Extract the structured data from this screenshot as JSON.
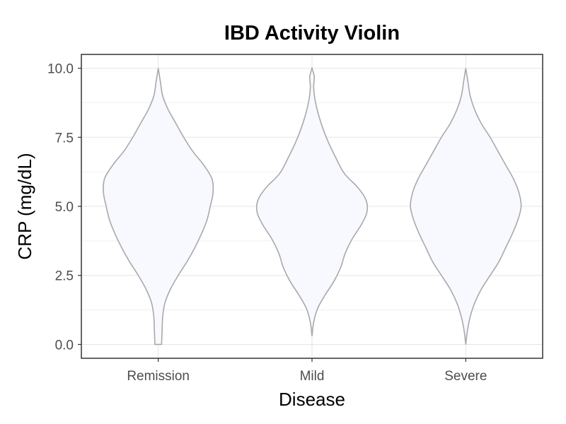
{
  "chart_data": {
    "type": "violin",
    "title": "IBD Activity Violin",
    "xlabel": "Disease",
    "ylabel": "CRP (mg/dL)",
    "categories": [
      "Remission",
      "Mild",
      "Severe"
    ],
    "y_ticks": [
      0.0,
      2.5,
      5.0,
      7.5,
      10.0
    ],
    "y_tick_labels": [
      "0.0",
      "2.5",
      "5.0",
      "7.5",
      "10.0"
    ],
    "ylim": [
      -0.5,
      10.5
    ],
    "grid": true,
    "legend": "none",
    "colors": {
      "fill": "#f8f9fe",
      "outline": "#a9a9a9",
      "grid": "#e5e5e5",
      "panel_border": "#333333"
    },
    "violins": [
      {
        "name": "Remission",
        "range": [
          0.0,
          10.0
        ],
        "profile": [
          [
            0.0,
            0.06
          ],
          [
            0.5,
            0.07
          ],
          [
            1.0,
            0.08
          ],
          [
            1.5,
            0.12
          ],
          [
            2.0,
            0.22
          ],
          [
            2.5,
            0.36
          ],
          [
            3.0,
            0.52
          ],
          [
            3.5,
            0.66
          ],
          [
            4.0,
            0.78
          ],
          [
            4.5,
            0.88
          ],
          [
            5.0,
            0.94
          ],
          [
            5.5,
            0.99
          ],
          [
            6.0,
            0.97
          ],
          [
            6.5,
            0.82
          ],
          [
            7.0,
            0.62
          ],
          [
            7.5,
            0.46
          ],
          [
            8.0,
            0.32
          ],
          [
            8.5,
            0.18
          ],
          [
            9.0,
            0.08
          ],
          [
            9.5,
            0.04
          ],
          [
            10.0,
            0.0
          ]
        ]
      },
      {
        "name": "Mild",
        "range": [
          0.3,
          10.0
        ],
        "profile": [
          [
            0.3,
            0.0
          ],
          [
            0.8,
            0.03
          ],
          [
            1.3,
            0.1
          ],
          [
            1.8,
            0.24
          ],
          [
            2.3,
            0.4
          ],
          [
            2.8,
            0.52
          ],
          [
            3.3,
            0.6
          ],
          [
            3.8,
            0.72
          ],
          [
            4.3,
            0.88
          ],
          [
            4.7,
            0.98
          ],
          [
            5.0,
            1.0
          ],
          [
            5.3,
            0.96
          ],
          [
            5.7,
            0.82
          ],
          [
            6.2,
            0.58
          ],
          [
            6.8,
            0.42
          ],
          [
            7.3,
            0.3
          ],
          [
            7.8,
            0.2
          ],
          [
            8.3,
            0.12
          ],
          [
            8.8,
            0.06
          ],
          [
            9.3,
            0.03
          ],
          [
            9.7,
            0.04
          ],
          [
            10.0,
            0.0
          ]
        ]
      },
      {
        "name": "Severe",
        "range": [
          0.0,
          10.0
        ],
        "profile": [
          [
            0.0,
            0.0
          ],
          [
            0.5,
            0.03
          ],
          [
            1.0,
            0.08
          ],
          [
            1.5,
            0.16
          ],
          [
            2.0,
            0.28
          ],
          [
            2.5,
            0.44
          ],
          [
            3.0,
            0.6
          ],
          [
            3.5,
            0.72
          ],
          [
            4.0,
            0.84
          ],
          [
            4.5,
            0.94
          ],
          [
            5.0,
            1.0
          ],
          [
            5.5,
            0.96
          ],
          [
            6.0,
            0.86
          ],
          [
            6.5,
            0.72
          ],
          [
            7.0,
            0.58
          ],
          [
            7.5,
            0.44
          ],
          [
            8.0,
            0.28
          ],
          [
            8.5,
            0.16
          ],
          [
            9.0,
            0.08
          ],
          [
            9.5,
            0.04
          ],
          [
            10.0,
            0.0
          ]
        ]
      }
    ]
  }
}
